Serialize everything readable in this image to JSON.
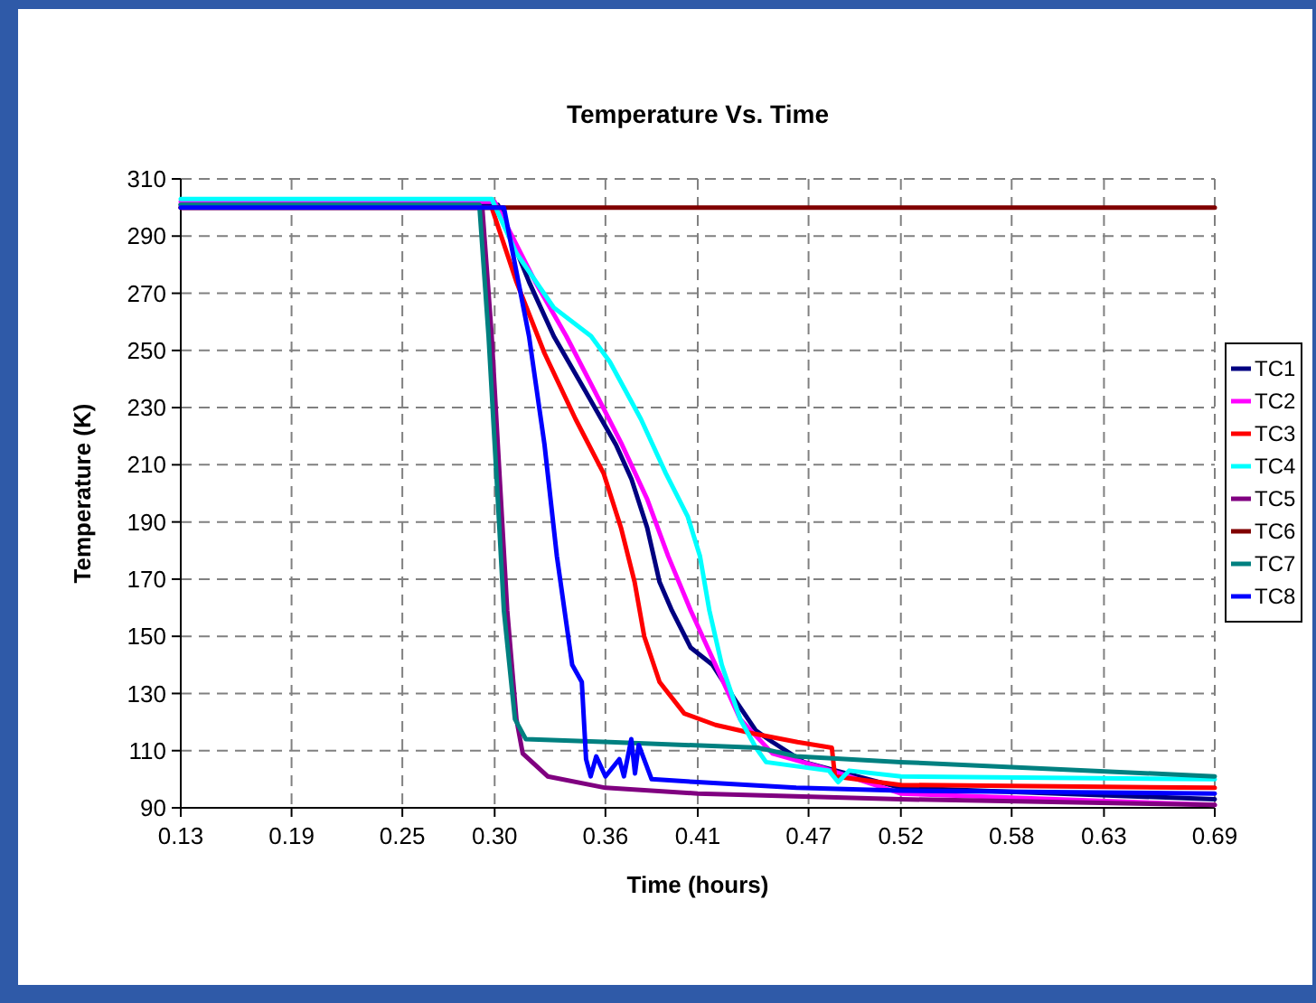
{
  "chart_data": {
    "type": "line",
    "title": "Temperature Vs. Time",
    "xlabel": "Time (hours)",
    "ylabel": "Temperature (K)",
    "xlim": [
      0.13,
      0.69
    ],
    "xticks": [
      0.13,
      0.19,
      0.25,
      {
        "value": 0.3,
        "label": "0.30"
      },
      0.36,
      0.41,
      0.47,
      0.52,
      0.58,
      0.63,
      0.69
    ],
    "ylim": [
      90,
      310
    ],
    "yticks": [
      90,
      110,
      130,
      150,
      170,
      190,
      210,
      230,
      250,
      270,
      290,
      310
    ],
    "grid": true,
    "legend": "right",
    "marker": "none",
    "line_style": "solid",
    "series": [
      {
        "name": "TC1",
        "color": "#000080",
        "x": [
          0.13,
          0.3017,
          0.3186,
          0.332,
          0.3489,
          0.3657,
          0.3741,
          0.3826,
          0.3893,
          0.396,
          0.4062,
          0.418,
          0.43,
          0.4415,
          0.4505,
          0.4674,
          0.52,
          0.69
        ],
        "values": [
          301,
          301,
          274,
          255,
          236,
          217,
          205,
          188,
          169,
          159,
          146,
          140,
          128,
          117,
          113,
          106,
          97,
          93
        ]
      },
      {
        "name": "TC2",
        "color": "#ff00ff",
        "x": [
          0.13,
          0.3,
          0.322,
          0.3388,
          0.354,
          0.369,
          0.3826,
          0.394,
          0.4062,
          0.4196,
          0.433,
          0.4505,
          0.4775,
          0.52,
          0.69
        ],
        "values": [
          302,
          302,
          274,
          255,
          236,
          217,
          198,
          178,
          159,
          140,
          121,
          109,
          104,
          95,
          91
        ]
      },
      {
        "name": "TC3",
        "color": "#ff0000",
        "x": [
          0.13,
          0.2984,
          0.3118,
          0.327,
          0.3438,
          0.359,
          0.3684,
          0.3758,
          0.381,
          0.3893,
          0.4027,
          0.4196,
          0.44,
          0.464,
          0.4826,
          0.4843,
          0.52,
          0.69
        ],
        "values": [
          300,
          300,
          274,
          249,
          226,
          207,
          188,
          169,
          150,
          134,
          123,
          119,
          116,
          113,
          111,
          101,
          98,
          97
        ]
      },
      {
        "name": "TC4",
        "color": "#00ffff",
        "x": [
          0.13,
          0.2984,
          0.3118,
          0.332,
          0.3522,
          0.3624,
          0.3792,
          0.3927,
          0.4045,
          0.4112,
          0.4163,
          0.423,
          0.433,
          0.4415,
          0.447,
          0.481,
          0.486,
          0.492,
          0.52,
          0.69
        ],
        "values": [
          303,
          303,
          284,
          265,
          255,
          246,
          226,
          207,
          192,
          178,
          159,
          140,
          121,
          111,
          106,
          103,
          99,
          103,
          101,
          100
        ]
      },
      {
        "name": "TC5",
        "color": "#800080",
        "x": [
          0.13,
          0.2933,
          0.2984,
          0.3017,
          0.3068,
          0.3118,
          0.3152,
          0.3287,
          0.36,
          0.41,
          0.52,
          0.69
        ],
        "values": [
          300,
          300,
          255,
          217,
          159,
          121,
          109,
          101,
          97,
          95,
          93,
          91
        ]
      },
      {
        "name": "TC6",
        "color": "#800000",
        "x": [
          0.13,
          0.69
        ],
        "values": [
          300,
          300
        ]
      },
      {
        "name": "TC7",
        "color": "#008080",
        "x": [
          0.13,
          0.2917,
          0.2967,
          0.3017,
          0.305,
          0.311,
          0.3169,
          0.3623,
          0.443,
          0.4633,
          0.52,
          0.69
        ],
        "values": [
          301,
          301,
          255,
          198,
          159,
          121,
          114,
          113,
          111,
          108,
          106,
          101
        ]
      },
      {
        "name": "TC8",
        "color": "#0000ff",
        "x": [
          0.13,
          0.305,
          0.3186,
          0.327,
          0.3337,
          0.342,
          0.3472,
          0.3495,
          0.352,
          0.355,
          0.36,
          0.3675,
          0.37,
          0.374,
          0.376,
          0.378,
          0.385,
          0.41,
          0.4633,
          0.52,
          0.69
        ],
        "values": [
          300,
          300,
          255,
          217,
          178,
          140,
          134,
          107,
          101,
          108,
          101,
          107,
          101,
          114,
          102,
          112,
          100,
          99,
          97,
          96,
          95
        ]
      }
    ]
  }
}
